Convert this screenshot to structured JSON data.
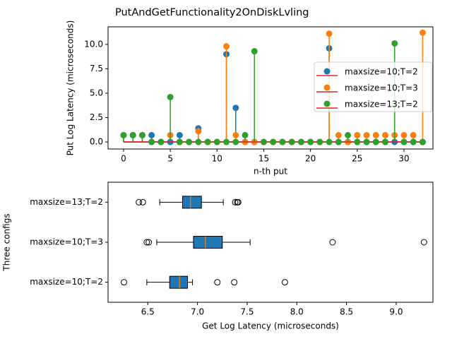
{
  "chart_data": [
    {
      "type": "stem",
      "title": "PutAndGetFunctionality2OnDiskLvling",
      "x_label": "n-th put",
      "y_label": "Put Log Latency (microseconds)",
      "x": [
        0,
        1,
        2,
        3,
        4,
        5,
        6,
        7,
        8,
        9,
        10,
        11,
        12,
        13,
        14,
        15,
        16,
        17,
        18,
        19,
        20,
        21,
        22,
        23,
        24,
        25,
        26,
        27,
        28,
        29,
        30,
        31,
        32
      ],
      "series": [
        {
          "name": "maxsize=10;T=2",
          "color": "#1f77b4",
          "values": [
            0.7,
            0.7,
            0.7,
            0.7,
            0,
            0,
            0.7,
            0,
            1.4,
            0,
            0,
            9.0,
            3.5,
            0,
            0,
            0,
            0,
            0,
            0,
            0,
            0,
            0,
            9.6,
            0,
            0,
            0,
            0,
            0,
            0,
            0,
            0,
            0,
            0
          ]
        },
        {
          "name": "maxsize=10;T=3",
          "color": "#ff7f0e",
          "values": [
            0.7,
            0.7,
            0.7,
            0,
            0,
            0.7,
            0,
            0,
            1.1,
            0,
            0,
            9.8,
            0.7,
            0,
            0,
            0,
            0,
            0,
            0,
            0,
            0,
            0,
            11.1,
            0.7,
            0,
            0.7,
            0.7,
            0.7,
            0.7,
            0.7,
            0.7,
            0.7,
            11.2
          ]
        },
        {
          "name": "maxsize=13;T=2",
          "color": "#2ca02c",
          "values": [
            0.7,
            0.7,
            0.7,
            0,
            0,
            4.6,
            0,
            0,
            0,
            0,
            0,
            0,
            0,
            0.7,
            9.3,
            0,
            0,
            0,
            0,
            0,
            0,
            0,
            0,
            0,
            0.7,
            0,
            0,
            0,
            0,
            10.1,
            0,
            0,
            0
          ]
        }
      ],
      "baseline_color": "#d62728",
      "xlim": [
        -1.66,
        33.1
      ],
      "ylim": [
        -0.72,
        11.8
      ],
      "xticks": [
        0,
        5,
        10,
        15,
        20,
        25,
        30
      ],
      "yticks": [
        {
          "value": 0,
          "label": "0.0"
        },
        2.5,
        {
          "value": 5,
          "label": "5.0"
        },
        7.5,
        {
          "value": 10,
          "label": "10.0"
        }
      ],
      "legend": "upper right"
    },
    {
      "type": "box",
      "x_label": "Get Log Latency (microseconds)",
      "y_label": "Three configs",
      "categories": [
        "maxsize=10;T=2",
        "maxsize=10;T=3",
        "maxsize=13;T=2"
      ],
      "color": "#1f77b4",
      "median_color": "#ff7f0e",
      "boxes": [
        {
          "min": 6.49,
          "q1": 6.72,
          "median": 6.82,
          "q3": 6.9,
          "max": 6.95,
          "outliers": [
            6.26,
            7.2,
            7.37,
            7.88
          ]
        },
        {
          "min": 6.59,
          "q1": 6.96,
          "median": 7.08,
          "q3": 7.25,
          "max": 7.53,
          "outliers": [
            6.49,
            6.51,
            8.36,
            9.28
          ]
        },
        {
          "min": 6.62,
          "q1": 6.85,
          "median": 6.93,
          "q3": 7.04,
          "max": 7.26,
          "outliers": [
            6.41,
            6.45,
            7.38,
            7.4,
            7.41
          ]
        }
      ],
      "xlim": [
        6.1,
        9.37
      ],
      "xticks": [
        6.5,
        {
          "value": 7,
          "label": "7.0"
        },
        7.5,
        {
          "value": 8,
          "label": "8.0"
        },
        8.5,
        {
          "value": 9,
          "label": "9.0"
        }
      ]
    }
  ]
}
